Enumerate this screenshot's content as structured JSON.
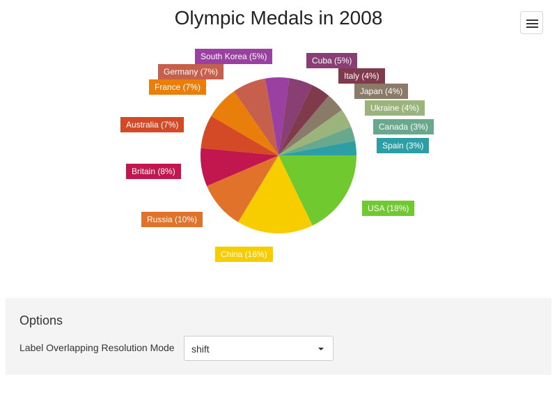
{
  "chart_data": {
    "type": "pie",
    "title": "Olympic Medals in 2008",
    "slices": [
      {
        "name": "USA",
        "value": 18,
        "label": "USA (18%)",
        "color": "#6fc92f"
      },
      {
        "name": "China",
        "value": 16,
        "label": "China (16%)",
        "color": "#f8cd00"
      },
      {
        "name": "Russia",
        "value": 10,
        "label": "Russia (10%)",
        "color": "#e0722a"
      },
      {
        "name": "Britain",
        "value": 8,
        "label": "Britain (8%)",
        "color": "#c2174e"
      },
      {
        "name": "Australia",
        "value": 7,
        "label": "Australia (7%)",
        "color": "#d44a27"
      },
      {
        "name": "France",
        "value": 7,
        "label": "France (7%)",
        "color": "#ea7e0a"
      },
      {
        "name": "Germany",
        "value": 7,
        "label": "Germany (7%)",
        "color": "#c65f4b"
      },
      {
        "name": "South Korea",
        "value": 5,
        "label": "South Korea (5%)",
        "color": "#9a40a0"
      },
      {
        "name": "Cuba",
        "value": 5,
        "label": "Cuba (5%)",
        "color": "#893f74"
      },
      {
        "name": "Italy",
        "value": 4,
        "label": "Italy (4%)",
        "color": "#7f3a4c"
      },
      {
        "name": "Japan",
        "value": 4,
        "label": "Japan (4%)",
        "color": "#8a7a68"
      },
      {
        "name": "Ukraine",
        "value": 4,
        "label": "Ukraine (4%)",
        "color": "#9ab47c"
      },
      {
        "name": "Canada",
        "value": 3,
        "label": "Canada (3%)",
        "color": "#68a98d"
      },
      {
        "name": "Spain",
        "value": 3,
        "label": "Spain (3%)",
        "color": "#2e9ea6"
      }
    ]
  },
  "menu": {
    "icon": "hamburger-menu-icon"
  },
  "options": {
    "title": "Options",
    "mode_label": "Label Overlapping Resolution Mode",
    "mode_value": "shift"
  }
}
